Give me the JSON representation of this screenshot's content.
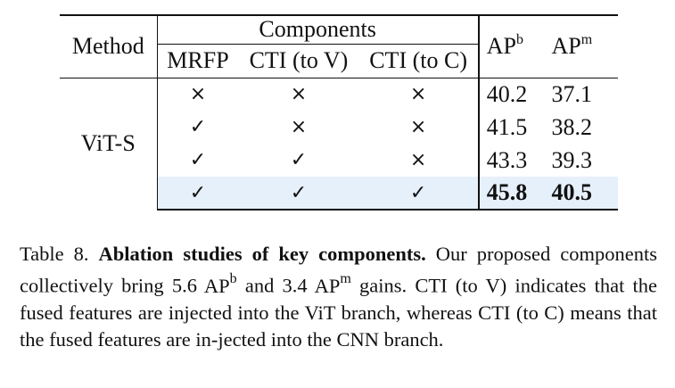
{
  "table": {
    "method_header": "Method",
    "components_header": "Components",
    "sub_headers": [
      "MRFP",
      "CTI (to V)",
      "CTI (to C)"
    ],
    "ap_b": {
      "base": "AP",
      "sup": "b"
    },
    "ap_m": {
      "base": "AP",
      "sup": "m"
    },
    "method_value": "ViT-S",
    "rows": [
      {
        "mrfp": "×",
        "cti_v": "×",
        "cti_c": "×",
        "apb": "40.2",
        "apm": "37.1"
      },
      {
        "mrfp": "✓",
        "cti_v": "×",
        "cti_c": "×",
        "apb": "41.5",
        "apm": "38.2"
      },
      {
        "mrfp": "✓",
        "cti_v": "✓",
        "cti_c": "×",
        "apb": "43.3",
        "apm": "39.3"
      },
      {
        "mrfp": "✓",
        "cti_v": "✓",
        "cti_c": "✓",
        "apb": "45.8",
        "apm": "40.5"
      }
    ],
    "highlight_color": "#e6f0fb"
  },
  "caption": {
    "label": "Table 8.",
    "bold": "Ablation studies of key components.",
    "part1": "Our proposed components collectively bring 5.6",
    "apb": "AP",
    "apb_sup": "b",
    "part2": "and 3.4",
    "apm": "AP",
    "apm_sup": "m",
    "part3": "gains. CTI (to V) indicates that the fused features are injected into the ViT branch, whereas CTI (to C) means that the fused features are in-jected into the CNN branch."
  }
}
